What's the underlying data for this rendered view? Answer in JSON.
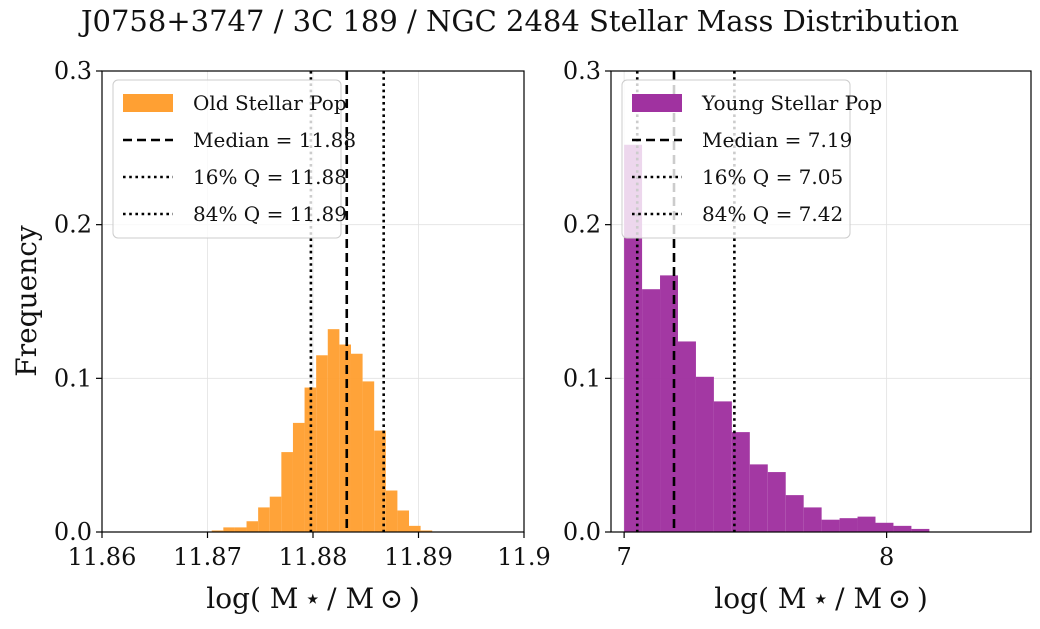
{
  "figure": {
    "title": "J0758+3747 / 3C 189 / NGC 2484 Stellar Mass Distribution",
    "ylabel": "Frequency"
  },
  "chart_data": [
    {
      "type": "bar",
      "subtype": "histogram",
      "xlabel": "log( M ⋆ / M ⊙ )",
      "xlim": [
        11.86,
        11.9
      ],
      "ylim": [
        0.0,
        0.3
      ],
      "xticks": [
        11.86,
        11.87,
        11.88,
        11.89,
        11.9
      ],
      "xtick_labels": [
        "11.86",
        "11.87",
        "11.88",
        "11.89",
        "11.9"
      ],
      "yticks": [
        0.0,
        0.1,
        0.2,
        0.3
      ],
      "ytick_labels": [
        "0.0",
        "0.1",
        "0.2",
        "0.3"
      ],
      "grid": true,
      "legend_position": "upper-left",
      "color": "#ffa033",
      "series_label": "Old Stellar Pop",
      "bins": {
        "edges": [
          11.8704,
          11.8715,
          11.8726,
          11.8737,
          11.8748,
          11.8759,
          11.877,
          11.8781,
          11.8792,
          11.8803,
          11.8814,
          11.8825,
          11.8836,
          11.8847,
          11.8858,
          11.8869,
          11.888,
          11.8891,
          11.8902,
          11.8913
        ],
        "values": [
          0.001,
          0.003,
          0.003,
          0.007,
          0.016,
          0.023,
          0.052,
          0.071,
          0.094,
          0.115,
          0.132,
          0.122,
          0.116,
          0.098,
          0.066,
          0.027,
          0.014,
          0.004,
          0.001
        ]
      },
      "lines": [
        {
          "label": "Median = 11.88",
          "value": 11.8832,
          "style": "dashed"
        },
        {
          "label": "16% Q = 11.88",
          "value": 11.8798,
          "style": "dotted"
        },
        {
          "label": "84% Q = 11.89",
          "value": 11.8867,
          "style": "dotted"
        }
      ]
    },
    {
      "type": "bar",
      "subtype": "histogram",
      "xlabel": "log( M ⋆ / M ⊙ )",
      "xlim": [
        6.95,
        8.55
      ],
      "ylim": [
        0.0,
        0.3
      ],
      "xticks": [
        7,
        8
      ],
      "xtick_labels": [
        "7",
        "8"
      ],
      "yticks": [
        0.0,
        0.1,
        0.2,
        0.3
      ],
      "ytick_labels": [
        "0.0",
        "0.1",
        "0.2",
        "0.3"
      ],
      "grid": true,
      "legend_position": "upper-left",
      "color": "#a032a0",
      "series_label": "Young Stellar Pop",
      "bins": {
        "edges": [
          7.0,
          7.0684,
          7.1368,
          7.2052,
          7.2736,
          7.342,
          7.4104,
          7.4788,
          7.5472,
          7.6156,
          7.684,
          7.7524,
          7.8208,
          7.8892,
          7.9576,
          8.026,
          8.0944,
          8.1628
        ],
        "values": [
          0.252,
          0.158,
          0.167,
          0.124,
          0.101,
          0.085,
          0.065,
          0.044,
          0.039,
          0.024,
          0.016,
          0.008,
          0.009,
          0.01,
          0.006,
          0.004,
          0.002
        ]
      },
      "lines": [
        {
          "label": "Median = 7.19",
          "value": 7.19,
          "style": "dashed"
        },
        {
          "label": "16% Q = 7.05",
          "value": 7.05,
          "style": "dotted"
        },
        {
          "label": "84% Q = 7.42",
          "value": 7.42,
          "style": "dotted"
        }
      ]
    }
  ]
}
